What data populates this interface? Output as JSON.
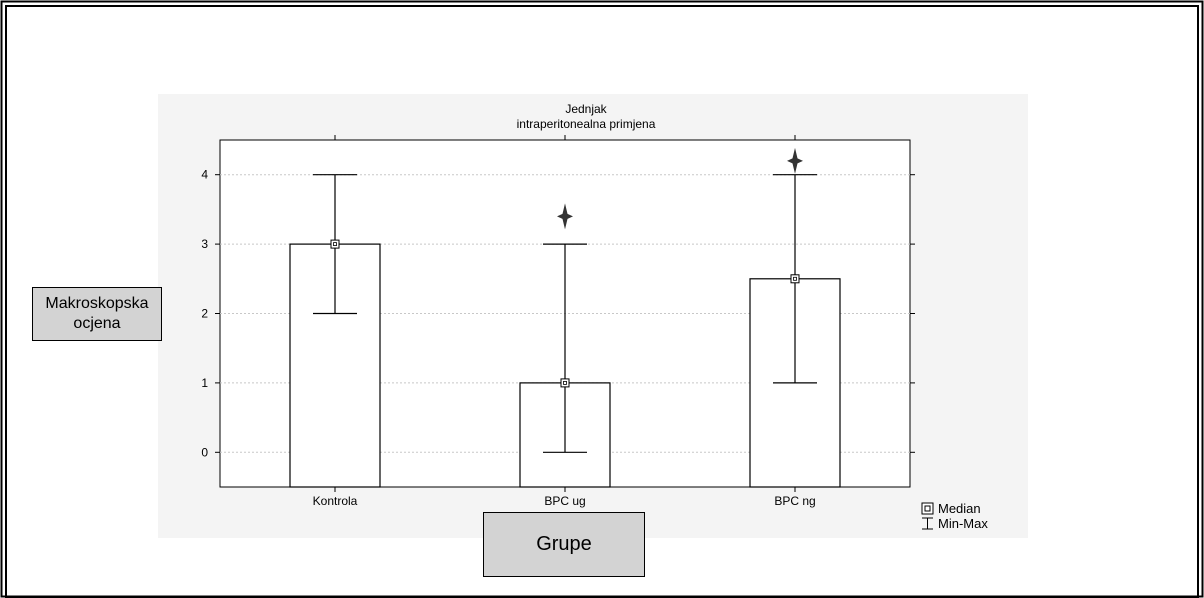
{
  "chart_data": {
    "type": "bar",
    "title": "Jednjak",
    "subtitle": "intraperitonealna primjena",
    "xlabel": "Grupe",
    "ylabel": "Makroskopska ocjena",
    "ylim": [
      -0.5,
      4.5
    ],
    "yticks": [
      0,
      1,
      2,
      3,
      4
    ],
    "grid": true,
    "categories": [
      "Kontrola",
      "BPC ug",
      "BPC ng"
    ],
    "series": [
      {
        "name": "Median",
        "values": [
          3,
          1,
          2.5
        ]
      }
    ],
    "min": [
      2,
      0,
      1
    ],
    "max": [
      4,
      3,
      4
    ],
    "outliers": [
      {
        "category": "BPC ug",
        "value": 3.4
      },
      {
        "category": "BPC ng",
        "value": 4.2
      }
    ],
    "legend": {
      "position": "bottom-right",
      "entries": [
        "Median",
        "Min-Max"
      ]
    }
  },
  "colors": {
    "bar_fill": "#ffffff",
    "stroke": "#000000",
    "grid": "#c8c8c8",
    "label_box": "#d3d3d3"
  }
}
